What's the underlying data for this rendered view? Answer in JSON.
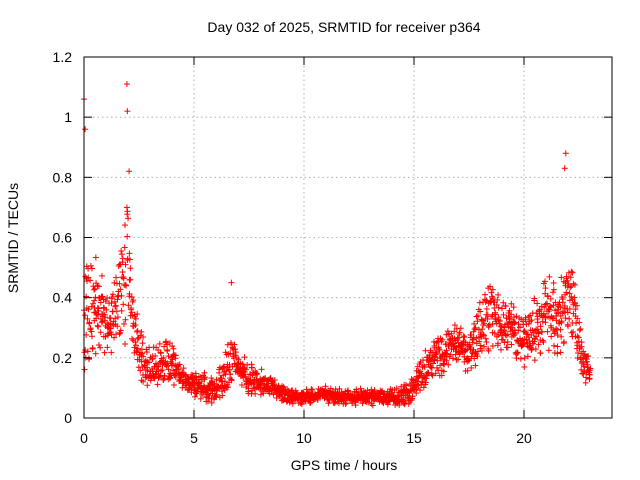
{
  "chart_data": {
    "type": "scatter",
    "title": "Day 032 of 2025, SRMTID for receiver p364",
    "xlabel": "GPS time / hours",
    "ylabel": "SRMTID / TECUs",
    "xlim": [
      0,
      24
    ],
    "ylim": [
      0,
      1.2
    ],
    "grid": true,
    "marker": "+",
    "marker_color": "#ff0000",
    "x_ticks": [
      0,
      5,
      10,
      15,
      20
    ],
    "x_tick_labels": [
      "0",
      "5",
      "10",
      "15",
      "20"
    ],
    "y_ticks": [
      0,
      0.2,
      0.4,
      0.6,
      0.8,
      1,
      1.2
    ],
    "y_tick_labels": [
      "0",
      "0.2",
      "0.4",
      "0.6",
      "0.8",
      "1",
      "1.2"
    ],
    "series": [
      {
        "name": "SRMTID",
        "sample_interval_hours": 0.05,
        "envelope_hours": [
          0,
          0.3,
          0.6,
          1.0,
          1.3,
          1.6,
          1.8,
          2.0,
          2.2,
          2.5,
          3.0,
          3.5,
          4.0,
          4.5,
          5.0,
          5.5,
          6.0,
          6.5,
          6.7,
          7.0,
          7.5,
          8.0,
          8.5,
          9.0,
          9.5,
          10.0,
          10.5,
          11.0,
          11.5,
          12.0,
          12.5,
          13.0,
          13.5,
          14.0,
          14.5,
          15.0,
          15.5,
          16.0,
          16.5,
          17.0,
          17.5,
          18.0,
          18.5,
          19.0,
          19.5,
          20.0,
          20.5,
          21.0,
          21.5,
          22.0,
          22.3,
          22.6,
          23.0
        ],
        "envelope_center": [
          0.35,
          0.35,
          0.38,
          0.32,
          0.33,
          0.36,
          0.45,
          0.55,
          0.35,
          0.2,
          0.17,
          0.18,
          0.19,
          0.13,
          0.11,
          0.1,
          0.09,
          0.16,
          0.2,
          0.16,
          0.13,
          0.12,
          0.11,
          0.08,
          0.07,
          0.07,
          0.07,
          0.08,
          0.07,
          0.07,
          0.07,
          0.07,
          0.07,
          0.07,
          0.07,
          0.1,
          0.16,
          0.2,
          0.22,
          0.25,
          0.22,
          0.3,
          0.35,
          0.3,
          0.3,
          0.25,
          0.3,
          0.35,
          0.3,
          0.4,
          0.35,
          0.2,
          0.15
        ],
        "envelope_spread": [
          0.25,
          0.2,
          0.18,
          0.12,
          0.14,
          0.2,
          0.25,
          0.3,
          0.2,
          0.1,
          0.08,
          0.08,
          0.08,
          0.05,
          0.05,
          0.05,
          0.05,
          0.1,
          0.12,
          0.07,
          0.06,
          0.05,
          0.05,
          0.03,
          0.03,
          0.03,
          0.03,
          0.03,
          0.03,
          0.03,
          0.03,
          0.03,
          0.03,
          0.03,
          0.04,
          0.06,
          0.07,
          0.08,
          0.08,
          0.08,
          0.08,
          0.12,
          0.12,
          0.1,
          0.1,
          0.1,
          0.12,
          0.14,
          0.14,
          0.18,
          0.15,
          0.08,
          0.05
        ],
        "peaks": [
          [
            0.0,
            1.06
          ],
          [
            0.05,
            0.96
          ],
          [
            1.95,
            1.11
          ],
          [
            1.97,
            1.02
          ],
          [
            2.05,
            0.82
          ],
          [
            6.7,
            0.45
          ],
          [
            21.9,
            0.88
          ],
          [
            21.85,
            0.83
          ]
        ]
      }
    ]
  }
}
